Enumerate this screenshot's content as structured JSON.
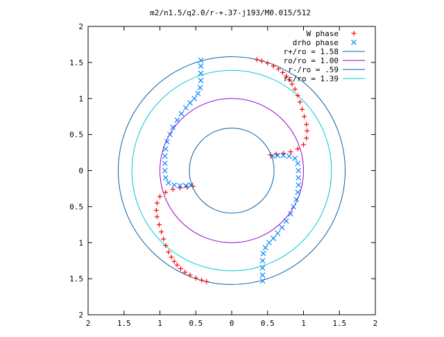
{
  "chart_data": {
    "type": "scatter",
    "title": "m2/n1.5/q2.0/r-+.37-j193/M0.015/512",
    "xlabel": "",
    "ylabel": "",
    "xlim": [
      -2,
      2
    ],
    "ylim": [
      -2,
      2
    ],
    "x_ticks": [
      {
        "v": -2,
        "label": "2"
      },
      {
        "v": -1.5,
        "label": "1.5"
      },
      {
        "v": -1,
        "label": "1"
      },
      {
        "v": -0.5,
        "label": "0.5"
      },
      {
        "v": 0,
        "label": "0"
      },
      {
        "v": 0.5,
        "label": "0.5"
      },
      {
        "v": 1,
        "label": "1"
      },
      {
        "v": 1.5,
        "label": "1.5"
      },
      {
        "v": 2,
        "label": "2"
      }
    ],
    "y_ticks": [
      {
        "v": 2,
        "label": "2"
      },
      {
        "v": 1.5,
        "label": "1.5"
      },
      {
        "v": 1,
        "label": "1"
      },
      {
        "v": 0.5,
        "label": "0.5"
      },
      {
        "v": 0,
        "label": "0"
      },
      {
        "v": -0.5,
        "label": "0.5"
      },
      {
        "v": -1,
        "label": "1"
      },
      {
        "v": -1.5,
        "label": "1.5"
      },
      {
        "v": -2,
        "label": "2"
      }
    ],
    "grid": false,
    "legend_position": "top-right",
    "circles": [
      {
        "label": "r+/ro = 1.58",
        "r": 1.58,
        "color": "#0060ad"
      },
      {
        "label": "ro/ro = 1.00",
        "r": 1.0,
        "color": "#9400d3"
      },
      {
        "label": "r-/ro = .59",
        "r": 0.59,
        "color": "#0060ad"
      },
      {
        "label": "rc/ro = 1.39",
        "r": 1.39,
        "color": "#00cccc"
      }
    ],
    "series": [
      {
        "name": "W phase",
        "marker": "plus",
        "color": "#ff0000",
        "points": [
          [
            0.35,
            1.54
          ],
          [
            0.42,
            1.52
          ],
          [
            0.5,
            1.49
          ],
          [
            0.58,
            1.45
          ],
          [
            0.65,
            1.41
          ],
          [
            0.71,
            1.36
          ],
          [
            0.76,
            1.31
          ],
          [
            0.8,
            1.26
          ],
          [
            0.84,
            1.2
          ],
          [
            0.88,
            1.13
          ],
          [
            0.92,
            1.04
          ],
          [
            0.95,
            0.95
          ],
          [
            0.98,
            0.85
          ],
          [
            1.01,
            0.75
          ],
          [
            1.04,
            0.64
          ],
          [
            1.05,
            0.55
          ],
          [
            1.04,
            0.45
          ],
          [
            1.0,
            0.36
          ],
          [
            0.92,
            0.3
          ],
          [
            0.82,
            0.26
          ],
          [
            0.72,
            0.24
          ],
          [
            0.62,
            0.23
          ],
          [
            0.54,
            0.22
          ],
          [
            -0.35,
            -1.54
          ],
          [
            -0.42,
            -1.52
          ],
          [
            -0.5,
            -1.49
          ],
          [
            -0.58,
            -1.45
          ],
          [
            -0.65,
            -1.41
          ],
          [
            -0.71,
            -1.36
          ],
          [
            -0.76,
            -1.31
          ],
          [
            -0.8,
            -1.26
          ],
          [
            -0.84,
            -1.2
          ],
          [
            -0.88,
            -1.13
          ],
          [
            -0.92,
            -1.04
          ],
          [
            -0.95,
            -0.95
          ],
          [
            -0.98,
            -0.85
          ],
          [
            -1.01,
            -0.75
          ],
          [
            -1.04,
            -0.64
          ],
          [
            -1.05,
            -0.55
          ],
          [
            -1.04,
            -0.45
          ],
          [
            -1.0,
            -0.36
          ],
          [
            -0.92,
            -0.3
          ],
          [
            -0.82,
            -0.26
          ],
          [
            -0.72,
            -0.24
          ],
          [
            -0.62,
            -0.23
          ],
          [
            -0.54,
            -0.22
          ]
        ]
      },
      {
        "name": "drho phase",
        "marker": "cross",
        "color": "#0080ff",
        "points": [
          [
            -0.43,
            1.53
          ],
          [
            -0.43,
            1.45
          ],
          [
            -0.43,
            1.35
          ],
          [
            -0.43,
            1.25
          ],
          [
            -0.44,
            1.15
          ],
          [
            -0.47,
            1.07
          ],
          [
            -0.52,
            1.0
          ],
          [
            -0.58,
            0.94
          ],
          [
            -0.64,
            0.87
          ],
          [
            -0.7,
            0.79
          ],
          [
            -0.76,
            0.7
          ],
          [
            -0.82,
            0.6
          ],
          [
            -0.86,
            0.5
          ],
          [
            -0.9,
            0.4
          ],
          [
            -0.92,
            0.3
          ],
          [
            -0.93,
            0.2
          ],
          [
            -0.93,
            0.1
          ],
          [
            -0.93,
            0.0
          ],
          [
            -0.92,
            -0.1
          ],
          [
            -0.88,
            -0.17
          ],
          [
            -0.8,
            -0.2
          ],
          [
            -0.72,
            -0.21
          ],
          [
            -0.64,
            -0.21
          ],
          [
            -0.57,
            -0.2
          ],
          [
            0.43,
            -1.53
          ],
          [
            0.43,
            -1.45
          ],
          [
            0.43,
            -1.35
          ],
          [
            0.43,
            -1.25
          ],
          [
            0.44,
            -1.15
          ],
          [
            0.47,
            -1.07
          ],
          [
            0.52,
            -1.0
          ],
          [
            0.58,
            -0.94
          ],
          [
            0.64,
            -0.87
          ],
          [
            0.7,
            -0.79
          ],
          [
            0.76,
            -0.7
          ],
          [
            0.82,
            -0.6
          ],
          [
            0.86,
            -0.5
          ],
          [
            0.9,
            -0.4
          ],
          [
            0.92,
            -0.3
          ],
          [
            0.93,
            -0.2
          ],
          [
            0.93,
            -0.1
          ],
          [
            0.93,
            0.0
          ],
          [
            0.92,
            0.1
          ],
          [
            0.88,
            0.17
          ],
          [
            0.8,
            0.2
          ],
          [
            0.72,
            0.21
          ],
          [
            0.64,
            0.21
          ],
          [
            0.57,
            0.2
          ]
        ]
      }
    ]
  }
}
